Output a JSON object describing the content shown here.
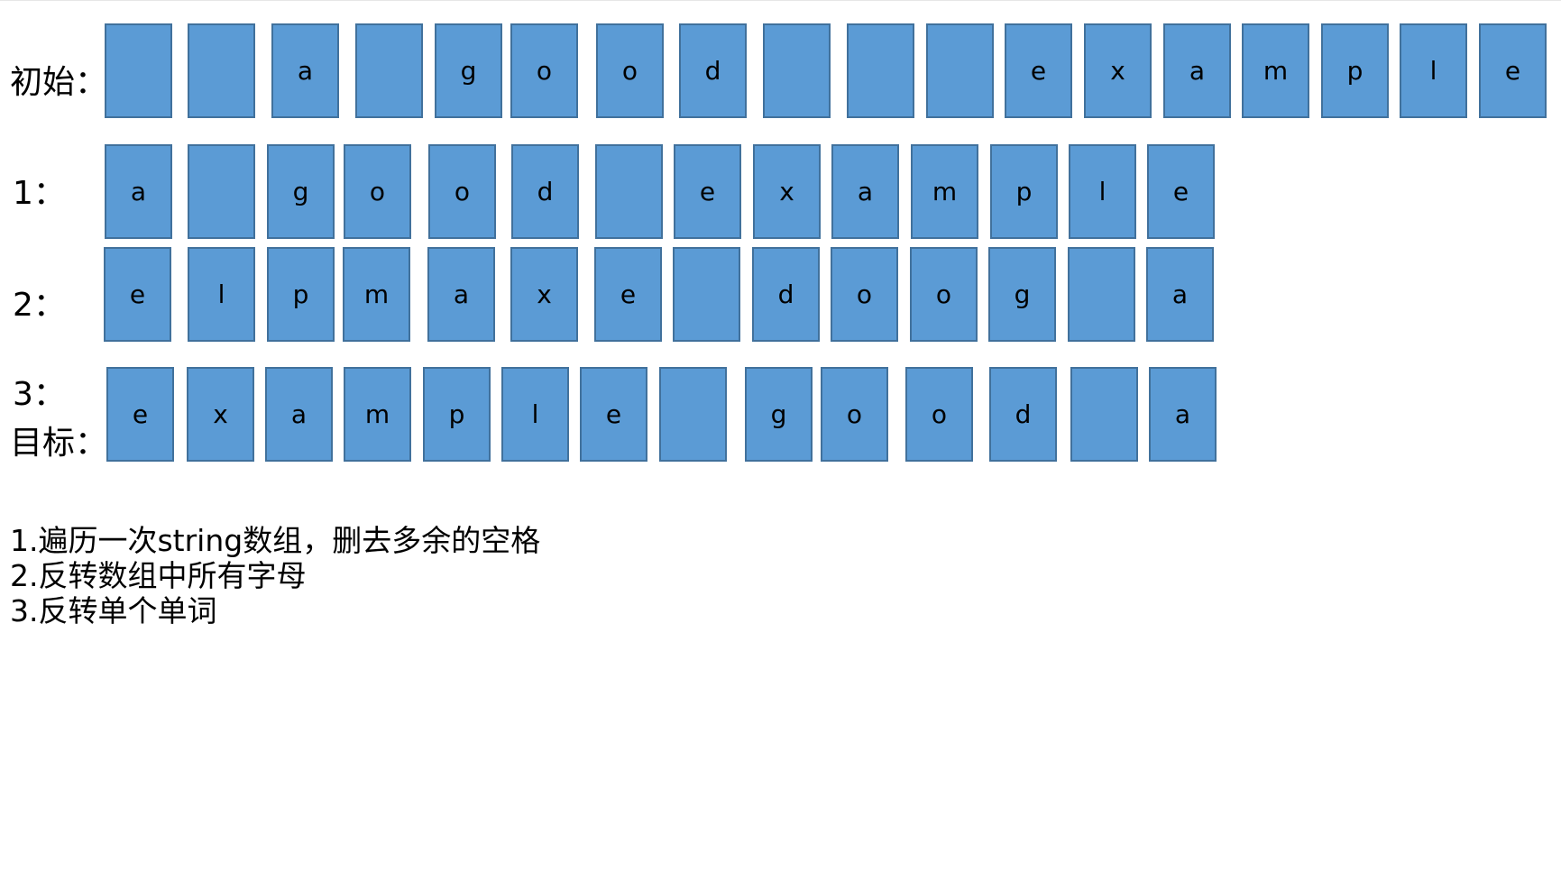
{
  "colors": {
    "cell_fill": "#5b9bd5",
    "cell_border": "#41719c",
    "text": "#000000"
  },
  "rows": [
    {
      "label": "初始：",
      "cells": [
        "",
        "",
        "a",
        "",
        "g",
        "o",
        "o",
        "d",
        "",
        "",
        "",
        "e",
        "x",
        "a",
        "m",
        "p",
        "l",
        "e"
      ]
    },
    {
      "label": "1：",
      "cells": [
        "a",
        "",
        "g",
        "o",
        "o",
        "d",
        "",
        "e",
        "x",
        "a",
        "m",
        "p",
        "l",
        "e"
      ]
    },
    {
      "label": "2：",
      "cells": [
        "e",
        "l",
        "p",
        "m",
        "a",
        "x",
        "e",
        "",
        "d",
        "o",
        "o",
        "g",
        "",
        "a"
      ]
    },
    {
      "label": "3：",
      "label2": "目标：",
      "cells": [
        "e",
        "x",
        "a",
        "m",
        "p",
        "l",
        "e",
        "",
        "g",
        "o",
        "o",
        "d",
        "",
        "a"
      ]
    }
  ],
  "notes": [
    "1.遍历一次string数组，删去多余的空格",
    "2.反转数组中所有字母",
    "3.反转单个单词"
  ]
}
